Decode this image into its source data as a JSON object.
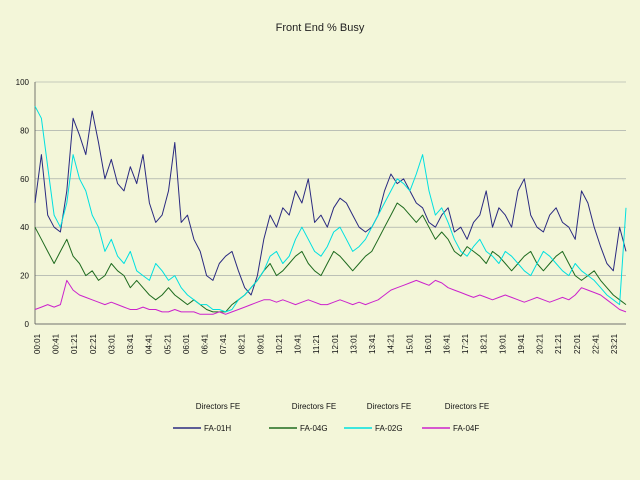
{
  "chart_data": {
    "type": "line",
    "title": "Front End % Busy",
    "xlabel": "",
    "ylabel": "",
    "ylim": [
      0,
      100
    ],
    "yticks": [
      0,
      20,
      40,
      60,
      80,
      100
    ],
    "grid": "horizontal",
    "legend_position": "bottom",
    "x_tick_labels": [
      "00:01",
      "00:41",
      "01:21",
      "02:21",
      "03:01",
      "03:41",
      "04:41",
      "05:21",
      "06:01",
      "06:41",
      "07:41",
      "08:21",
      "09:01",
      "10:21",
      "10:41",
      "11:21",
      "12:01",
      "13:01",
      "13:41",
      "14:21",
      "15:01",
      "16:01",
      "16:41",
      "17:21",
      "18:21",
      "19:01",
      "19:41",
      "20:21",
      "21:21",
      "22:01",
      "22:41",
      "23:21"
    ],
    "series": [
      {
        "name": "FA-01H",
        "group": "Directors FE",
        "color": "#2a2a80",
        "values": [
          50,
          70,
          45,
          40,
          38,
          55,
          85,
          78,
          70,
          88,
          75,
          60,
          68,
          58,
          55,
          65,
          58,
          70,
          50,
          42,
          45,
          55,
          75,
          42,
          45,
          35,
          30,
          20,
          18,
          25,
          28,
          30,
          22,
          15,
          12,
          20,
          35,
          45,
          40,
          48,
          45,
          55,
          50,
          60,
          42,
          45,
          40,
          48,
          52,
          50,
          45,
          40,
          38,
          40,
          45,
          55,
          62,
          58,
          60,
          55,
          50,
          48,
          42,
          40,
          45,
          48,
          38,
          40,
          35,
          42,
          45,
          55,
          40,
          48,
          45,
          40,
          55,
          60,
          45,
          40,
          38,
          45,
          48,
          42,
          40,
          35,
          55,
          50,
          40,
          32,
          25,
          22,
          40,
          30
        ]
      },
      {
        "name": "FA-04G",
        "group": "Directors FE",
        "color": "#1f6b1f",
        "values": [
          40,
          35,
          30,
          25,
          30,
          35,
          28,
          25,
          20,
          22,
          18,
          20,
          25,
          22,
          20,
          15,
          18,
          15,
          12,
          10,
          12,
          15,
          12,
          10,
          8,
          10,
          8,
          6,
          5,
          5,
          5,
          8,
          10,
          12,
          15,
          18,
          22,
          25,
          20,
          22,
          25,
          28,
          30,
          25,
          22,
          20,
          25,
          30,
          28,
          25,
          22,
          25,
          28,
          30,
          35,
          40,
          45,
          50,
          48,
          45,
          42,
          45,
          40,
          35,
          38,
          35,
          30,
          28,
          32,
          30,
          28,
          25,
          30,
          28,
          25,
          22,
          25,
          28,
          30,
          25,
          22,
          25,
          28,
          30,
          25,
          20,
          18,
          20,
          22,
          18,
          15,
          12,
          10,
          8
        ]
      },
      {
        "name": "FA-02G",
        "group": "Directors FE",
        "color": "#00e0e0",
        "values": [
          90,
          85,
          65,
          45,
          40,
          50,
          70,
          60,
          55,
          45,
          40,
          30,
          35,
          28,
          25,
          30,
          22,
          20,
          18,
          25,
          22,
          18,
          20,
          15,
          12,
          10,
          8,
          8,
          6,
          6,
          5,
          6,
          10,
          12,
          15,
          18,
          22,
          28,
          30,
          25,
          28,
          35,
          40,
          35,
          30,
          28,
          32,
          38,
          40,
          35,
          30,
          32,
          35,
          40,
          45,
          50,
          55,
          60,
          58,
          55,
          62,
          70,
          55,
          45,
          48,
          42,
          35,
          30,
          28,
          32,
          35,
          30,
          28,
          25,
          30,
          28,
          25,
          22,
          20,
          25,
          30,
          28,
          25,
          22,
          20,
          25,
          22,
          20,
          18,
          15,
          12,
          10,
          8,
          48
        ]
      },
      {
        "name": "FA-04F",
        "group": "Directors FE",
        "color": "#cc22cc",
        "values": [
          6,
          7,
          8,
          7,
          8,
          18,
          14,
          12,
          11,
          10,
          9,
          8,
          9,
          8,
          7,
          6,
          6,
          7,
          6,
          6,
          5,
          5,
          6,
          5,
          5,
          5,
          4,
          4,
          4,
          5,
          4,
          5,
          6,
          7,
          8,
          9,
          10,
          10,
          9,
          10,
          9,
          8,
          9,
          10,
          9,
          8,
          8,
          9,
          10,
          9,
          8,
          9,
          8,
          9,
          10,
          12,
          14,
          15,
          16,
          17,
          18,
          17,
          16,
          18,
          17,
          15,
          14,
          13,
          12,
          11,
          12,
          11,
          10,
          11,
          12,
          11,
          10,
          9,
          10,
          11,
          10,
          9,
          10,
          11,
          10,
          12,
          15,
          14,
          13,
          12,
          10,
          8,
          6,
          5
        ]
      }
    ]
  }
}
